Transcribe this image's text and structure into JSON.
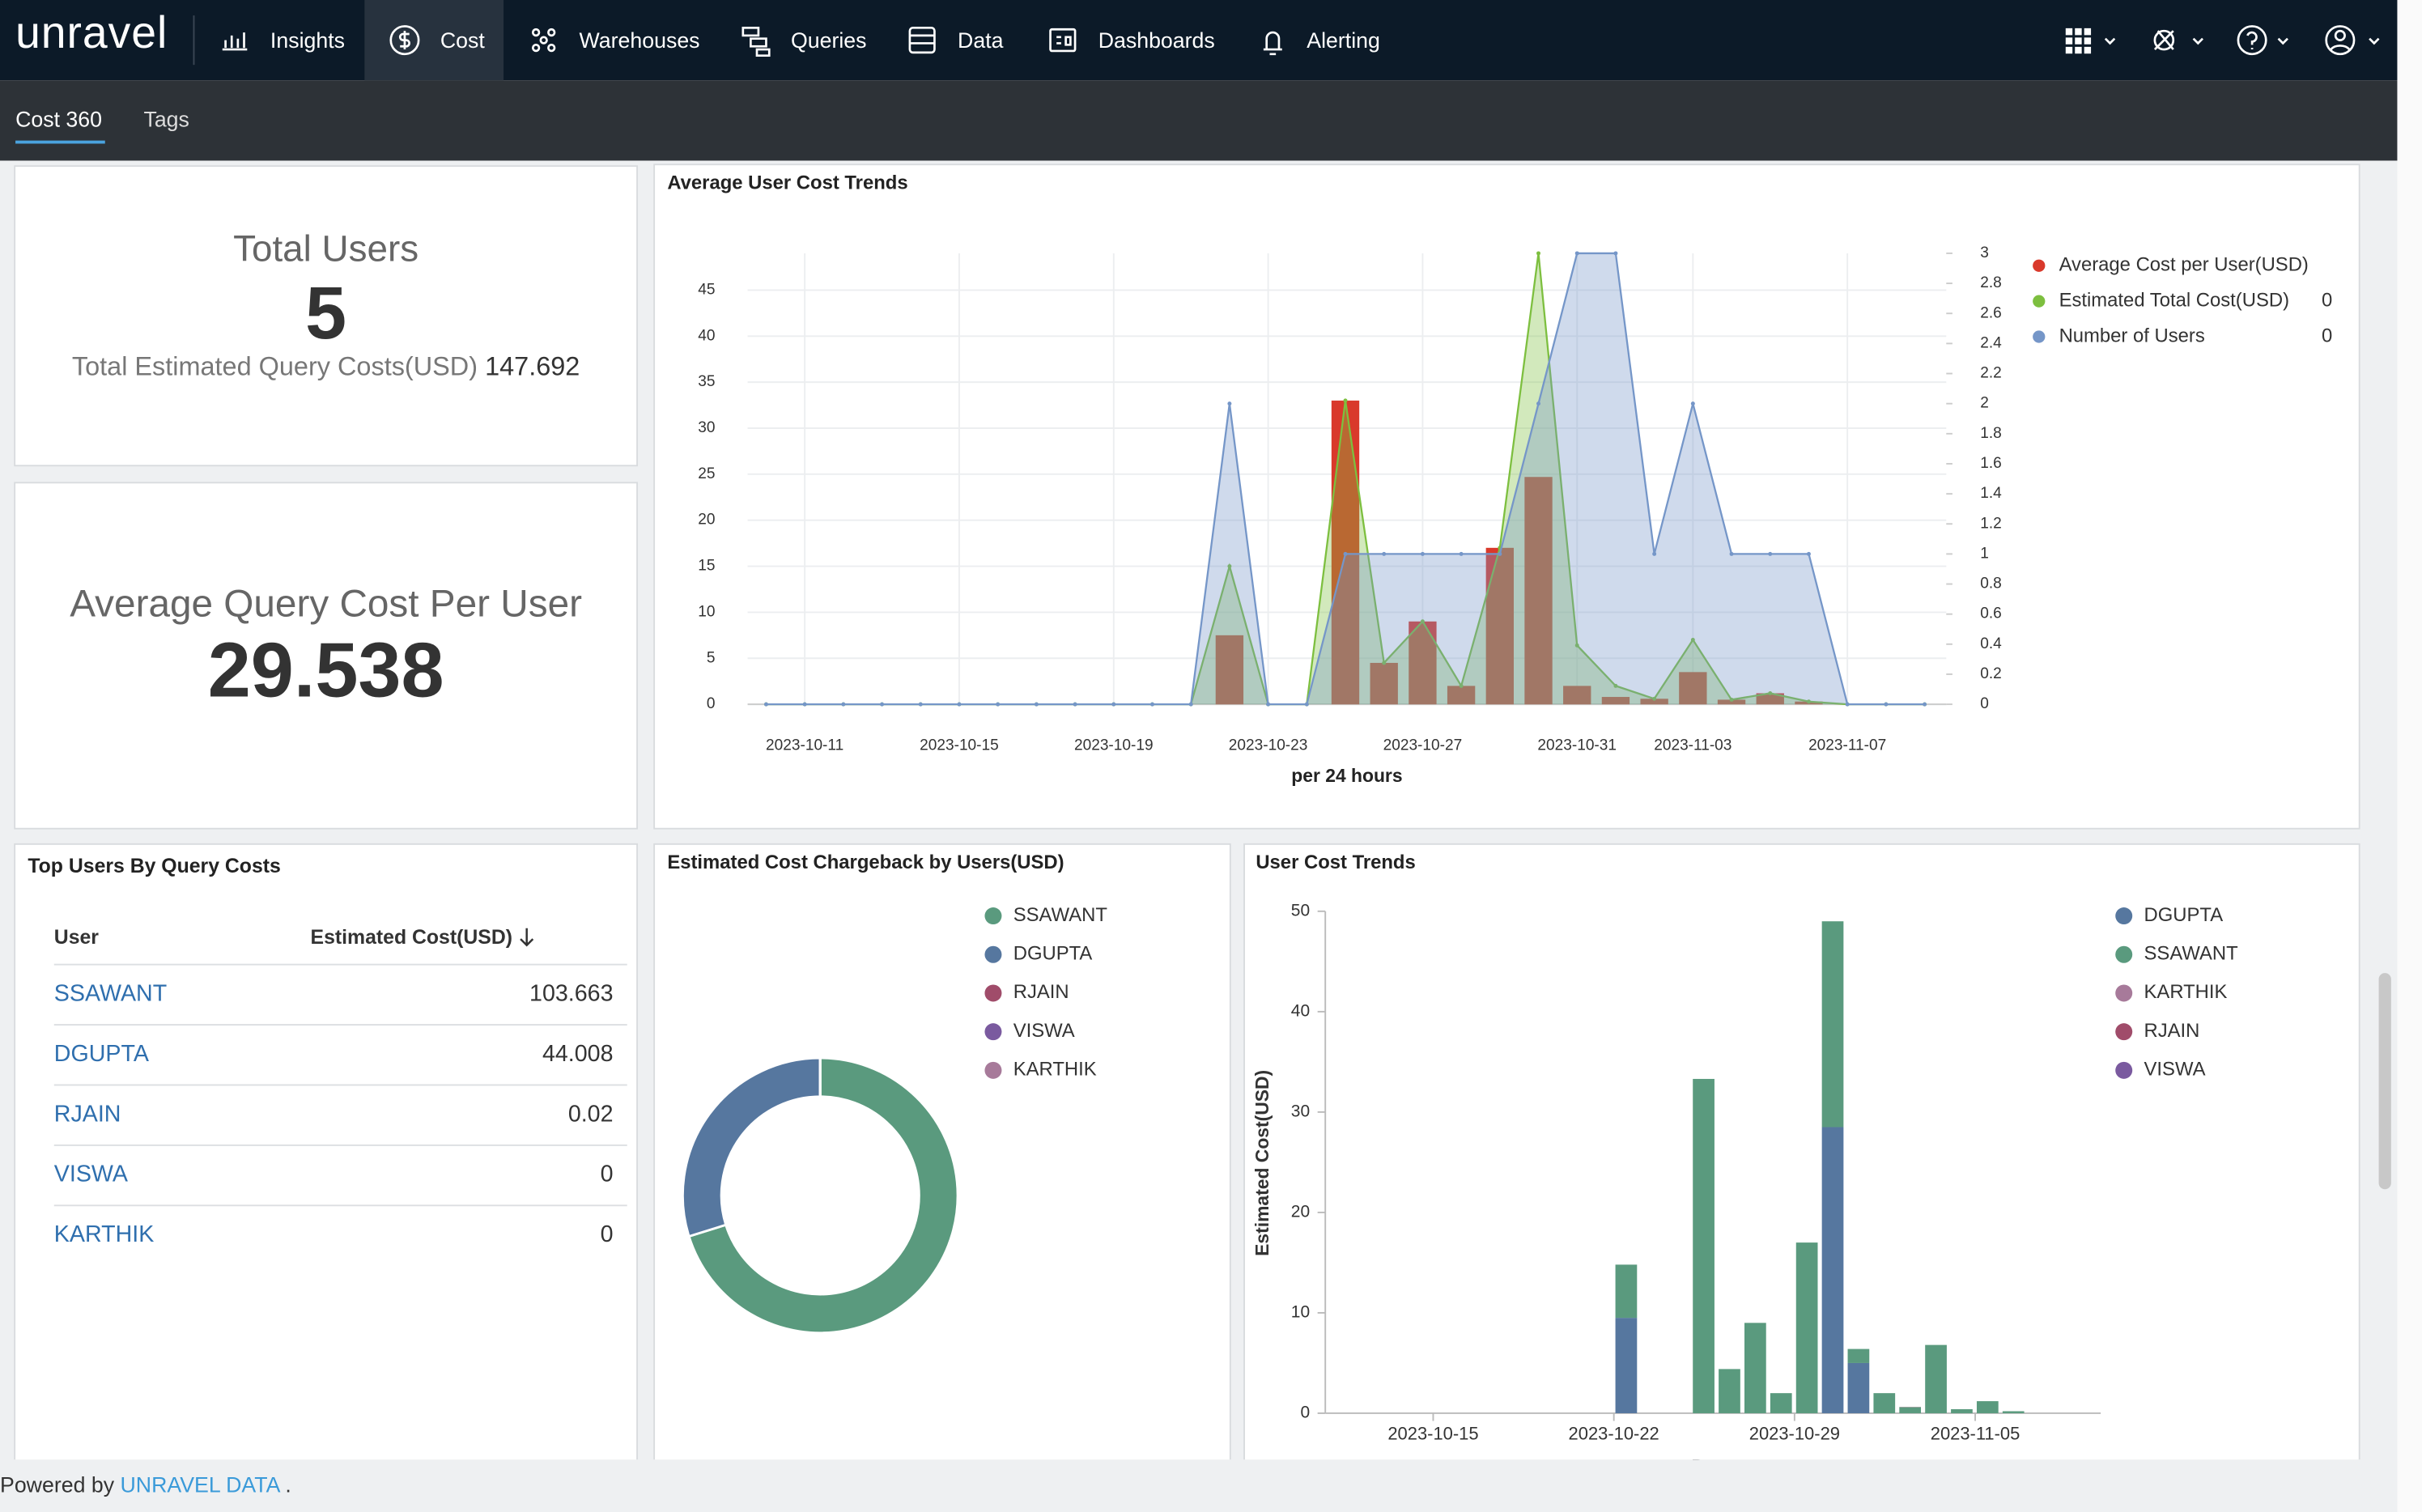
{
  "nav": {
    "logo": "unravel",
    "items": [
      "Insights",
      "Cost",
      "Warehouses",
      "Queries",
      "Data",
      "Dashboards",
      "Alerting"
    ]
  },
  "tabs": [
    "Cost 360",
    "Tags"
  ],
  "total_users": {
    "title": "Total Users",
    "value": 5,
    "cost_label": "Total Estimated Query Costs(USD)",
    "cost_value": 147.692
  },
  "avg_cost": {
    "title": "Average Query Cost Per User",
    "value": 29.538
  },
  "top_users": {
    "title": "Top Users By Query Costs",
    "columns": [
      "User",
      "Estimated Cost(USD)"
    ],
    "rows": [
      [
        "SSAWANT",
        103.663
      ],
      [
        "DGUPTA",
        44.008
      ],
      [
        "RJAIN",
        0.02
      ],
      [
        "VISWA",
        0
      ],
      [
        "KARTHIK",
        0
      ]
    ]
  },
  "avg_trend": {
    "type": "bar",
    "title": "Average User Cost Trends",
    "xlabel": "per 24 hours",
    "categories": [
      null,
      "2023-10-11",
      null,
      null,
      null,
      "2023-10-15",
      null,
      null,
      null,
      "2023-10-19",
      null,
      null,
      null,
      "2023-10-23",
      null,
      null,
      null,
      "2023-10-27",
      null,
      null,
      null,
      "2023-10-31",
      null,
      null,
      "2023-11-03",
      null,
      null,
      null,
      "2023-11-07",
      null,
      null
    ],
    "ylim": [
      0,
      49
    ],
    "yticks": [
      0,
      5,
      10,
      15,
      20,
      25,
      30,
      35,
      40,
      45
    ],
    "y2lim": [
      0,
      3
    ],
    "y2ticks": [
      0,
      0.2,
      0.4,
      0.6,
      0.8,
      1,
      1.2,
      1.4,
      1.6,
      1.8,
      2,
      2.2,
      2.4,
      2.6,
      2.8,
      3
    ],
    "grid": true,
    "series": [
      {
        "name": "Average Cost per User(USD)",
        "type": "bar",
        "color": "#d9392b",
        "values": [
          0,
          0,
          0,
          0,
          0,
          0,
          0,
          0,
          0,
          0,
          0,
          0,
          7.5,
          0,
          0,
          33,
          4.5,
          9,
          2,
          17,
          24.7,
          2,
          0.8,
          0.6,
          3.5,
          0.5,
          1.2,
          0.3,
          0,
          0,
          0
        ]
      },
      {
        "name": "Estimated Total Cost(USD)",
        "type": "area",
        "color": "#7dbf3f",
        "legend_value": 0,
        "values": [
          0,
          0,
          0,
          0,
          0,
          0,
          0,
          0,
          0,
          0,
          0,
          0,
          15,
          0,
          0,
          33,
          4.5,
          9,
          2,
          17,
          49,
          6.4,
          2,
          0.6,
          7,
          0.5,
          1.2,
          0.3,
          0,
          0,
          0
        ]
      },
      {
        "name": "Number of Users",
        "type": "area",
        "axis": "y2",
        "color": "#7596c8",
        "legend_value": 0,
        "values": [
          0,
          0,
          0,
          0,
          0,
          0,
          0,
          0,
          0,
          0,
          0,
          0,
          2,
          0,
          0,
          1,
          1,
          1,
          1,
          1,
          2,
          3,
          3,
          1,
          2,
          1,
          1,
          1,
          0,
          0,
          0
        ]
      }
    ]
  },
  "chargeback": {
    "type": "pie",
    "title": "Estimated Cost Chargeback by Users(USD)",
    "categories": [
      "SSAWANT",
      "DGUPTA",
      "RJAIN",
      "VISWA",
      "KARTHIK"
    ],
    "values": [
      103.663,
      44.008,
      0.02,
      0,
      0
    ],
    "colors": [
      "#5a9a7e",
      "#56779f",
      "#a04c6a",
      "#7a5a9f",
      "#a77a9a"
    ]
  },
  "user_trends": {
    "type": "bar",
    "stacked": true,
    "title": "User Cost Trends",
    "ylabel": "Estimated Cost(USD)",
    "xlabel": "Date",
    "categories": [
      null,
      null,
      null,
      null,
      "2023-10-15",
      null,
      null,
      null,
      null,
      null,
      null,
      "2023-10-22",
      null,
      null,
      null,
      null,
      null,
      null,
      "2023-10-29",
      null,
      null,
      null,
      null,
      null,
      null,
      "2023-11-05",
      null,
      null,
      null,
      null
    ],
    "ylim": [
      0,
      50
    ],
    "yticks": [
      0,
      10,
      20,
      30,
      40,
      50
    ],
    "series": [
      {
        "name": "DGUPTA",
        "color": "#56779f",
        "values": [
          0,
          0,
          0,
          0,
          0,
          0,
          0,
          0,
          0,
          0,
          0,
          9.5,
          0,
          0,
          0,
          0,
          0,
          0,
          0,
          28.5,
          5,
          0,
          0,
          0,
          0,
          0,
          0,
          0,
          0,
          0
        ]
      },
      {
        "name": "SSAWANT",
        "color": "#5a9a7e",
        "values": [
          0,
          0,
          0,
          0,
          0,
          0,
          0,
          0,
          0,
          0,
          0,
          5.3,
          0,
          0,
          33.3,
          4.4,
          9,
          2,
          17,
          20.5,
          1.4,
          2,
          0.6,
          6.8,
          0.4,
          1.2,
          0.2,
          0,
          0,
          0
        ]
      },
      {
        "name": "KARTHIK",
        "color": "#a77a9a",
        "values": [
          0,
          0,
          0,
          0,
          0,
          0,
          0,
          0,
          0,
          0,
          0,
          0,
          0,
          0,
          0,
          0,
          0,
          0,
          0,
          0,
          0,
          0,
          0,
          0,
          0,
          0,
          0,
          0,
          0,
          0
        ]
      },
      {
        "name": "RJAIN",
        "color": "#a04c6a",
        "values": [
          0,
          0,
          0,
          0,
          0,
          0,
          0,
          0,
          0,
          0,
          0,
          0,
          0,
          0,
          0,
          0,
          0,
          0,
          0,
          0,
          0,
          0,
          0.02,
          0,
          0,
          0,
          0,
          0,
          0,
          0
        ]
      },
      {
        "name": "VISWA",
        "color": "#7a5a9f",
        "values": [
          0,
          0,
          0,
          0,
          0,
          0,
          0,
          0,
          0,
          0,
          0,
          0,
          0,
          0,
          0,
          0,
          0,
          0,
          0,
          0,
          0,
          0,
          0,
          0,
          0,
          0,
          0,
          0,
          0,
          0
        ]
      }
    ]
  },
  "footer": {
    "prefix": "Powered by",
    "link": "UNRAVEL DATA",
    "suffix": "."
  }
}
